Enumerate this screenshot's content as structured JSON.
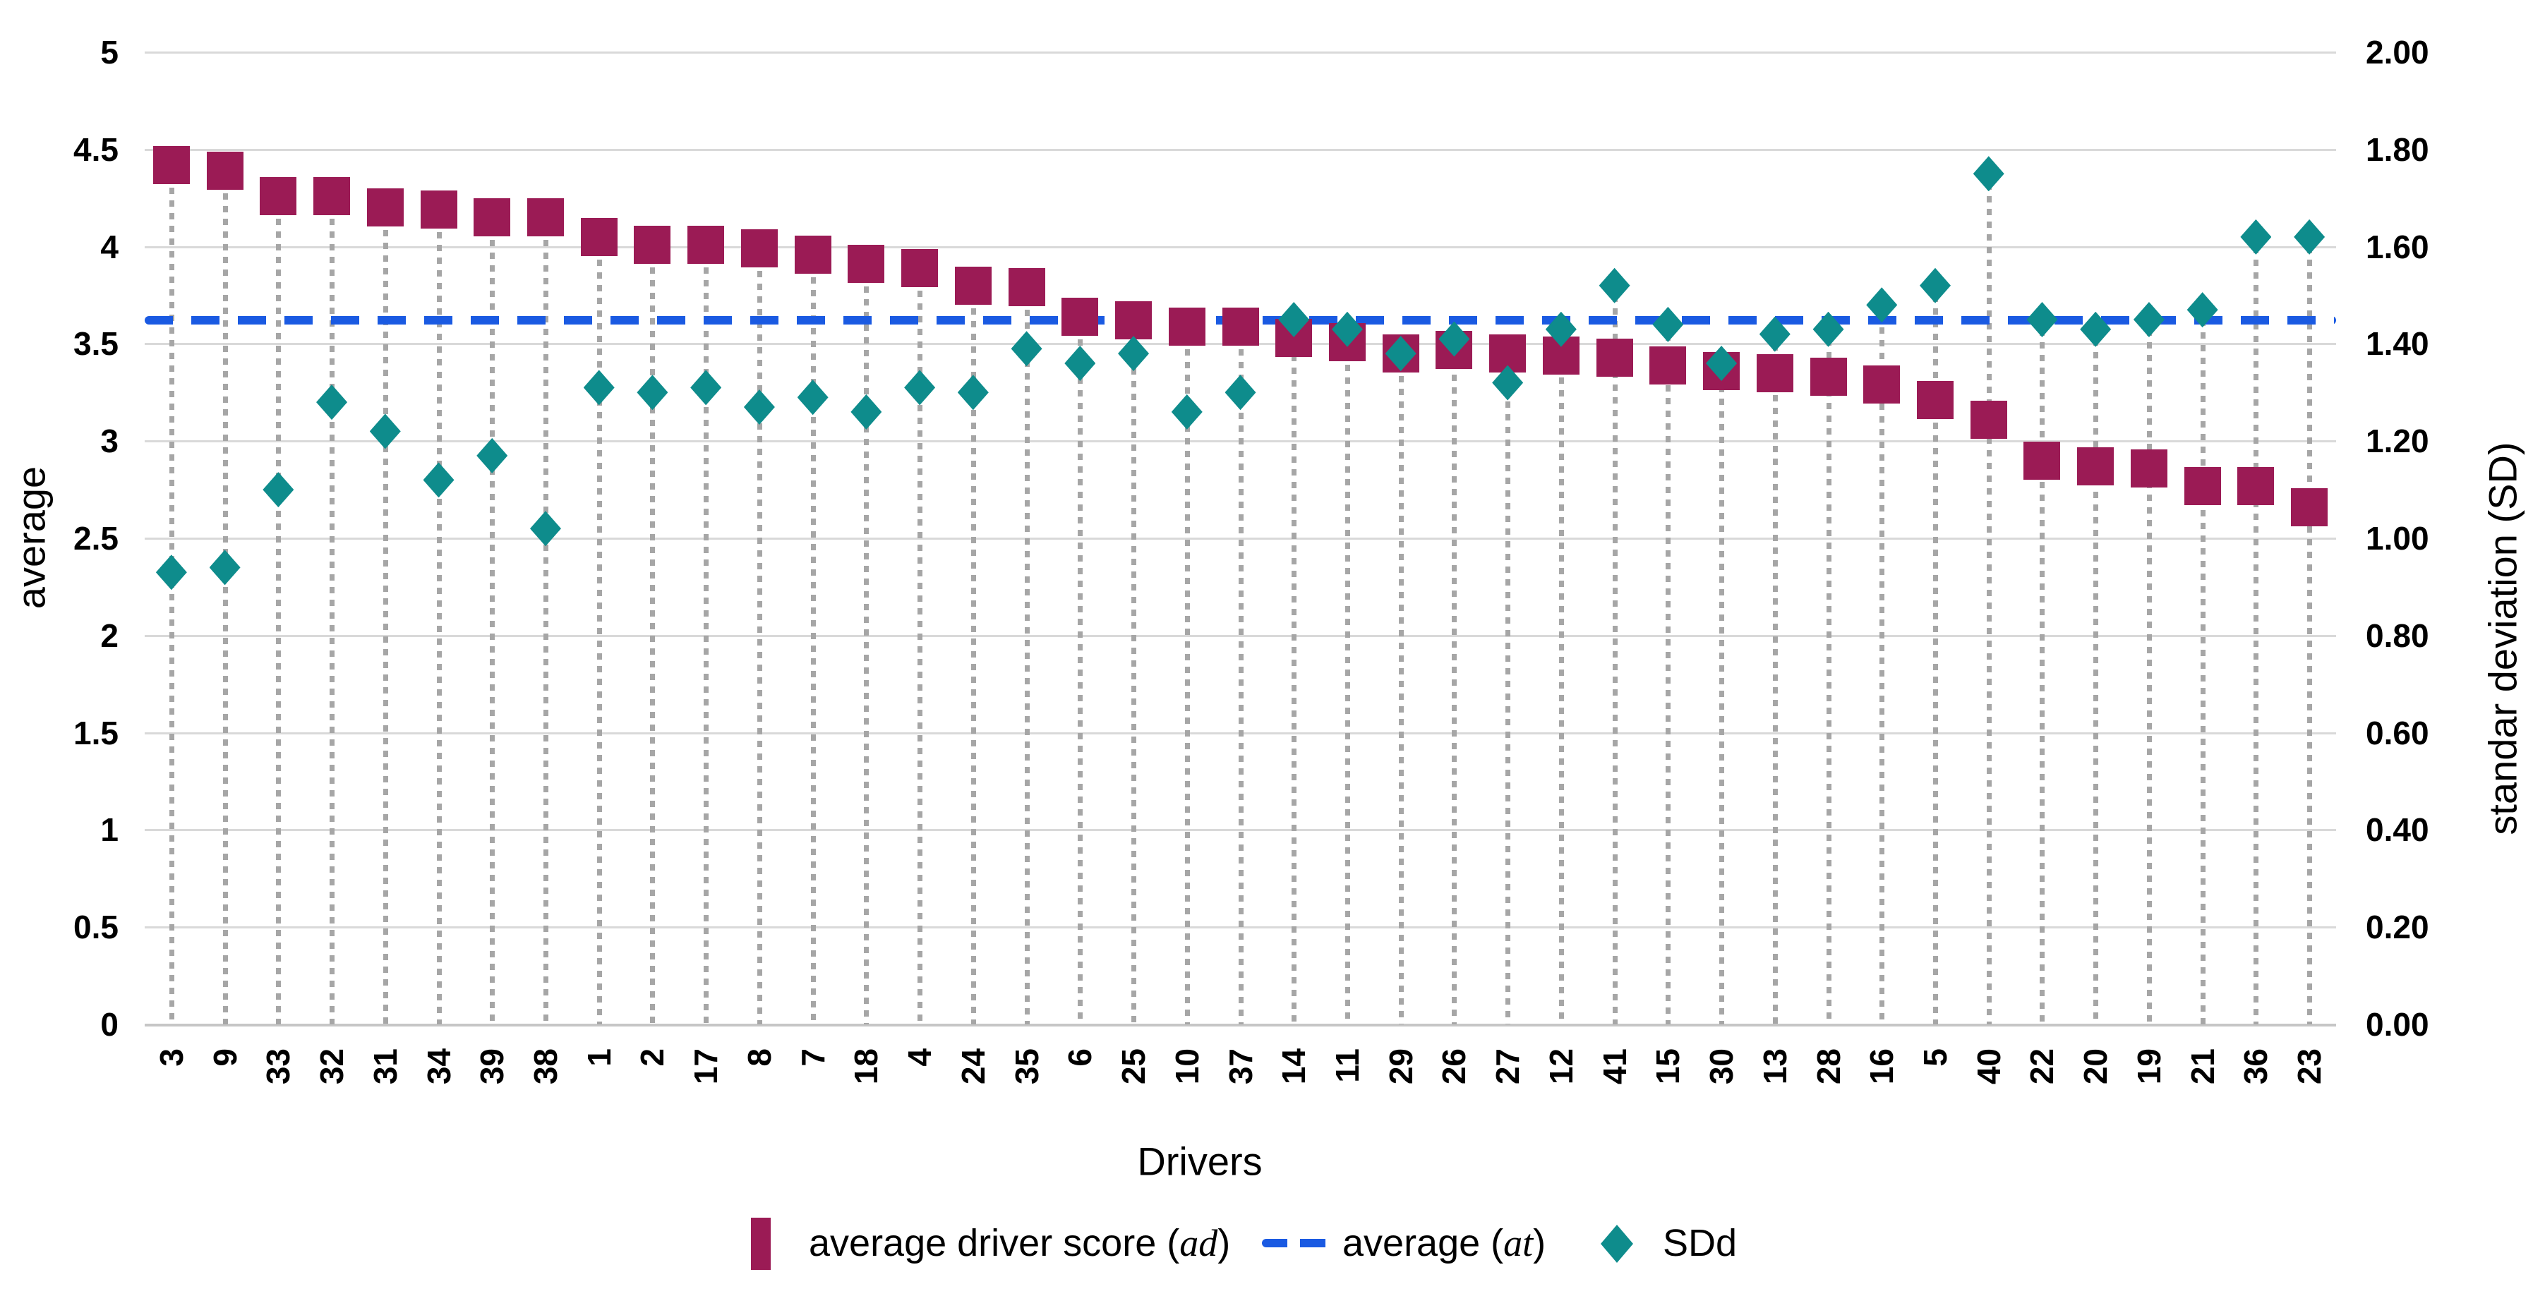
{
  "colors": {
    "square_series": "#9b1b55",
    "diamond_series": "#0e8c8c",
    "dashed_average": "#1a5ae2",
    "gridline": "#d9d9d9",
    "dropline": "#a6a6a6",
    "text": "#000000"
  },
  "legend": {
    "items": [
      {
        "marker": "square-swatch",
        "label_prefix": "average driver score (",
        "label_var": "ad",
        "label_suffix": ")"
      },
      {
        "marker": "dashed-swatch",
        "label_prefix": "average (",
        "label_var": "at",
        "label_suffix": ")"
      },
      {
        "marker": "diamond-swatch",
        "label_prefix": "SDd",
        "label_var": "",
        "label_suffix": ""
      }
    ]
  },
  "chart_data": {
    "type": "scatter",
    "title": "",
    "xlabel": "Drivers",
    "y_left": {
      "title": "average",
      "min": 0,
      "max": 5,
      "tick_step": 0.5,
      "ticks": [
        "5",
        "4.5",
        "4",
        "3.5",
        "3",
        "2.5",
        "2",
        "1.5",
        "1",
        "0.5",
        "0"
      ]
    },
    "y_right": {
      "title": "standar deviation (SD)",
      "min": 0,
      "max": 2,
      "tick_step": 0.2,
      "ticks": [
        "2.00",
        "1.80",
        "1.60",
        "1.40",
        "1.20",
        "1.00",
        "0.80",
        "0.60",
        "0.40",
        "0.20",
        "0.00"
      ]
    },
    "categories": [
      "3",
      "9",
      "33",
      "32",
      "31",
      "34",
      "39",
      "38",
      "1",
      "2",
      "17",
      "8",
      "7",
      "18",
      "4",
      "24",
      "35",
      "6",
      "25",
      "10",
      "37",
      "14",
      "11",
      "29",
      "26",
      "27",
      "12",
      "41",
      "15",
      "30",
      "13",
      "28",
      "16",
      "5",
      "40",
      "22",
      "20",
      "19",
      "21",
      "36",
      "23"
    ],
    "grid": true,
    "legend_position": "bottom",
    "series": [
      {
        "name": "average driver score (ad)",
        "marker": "square",
        "axis": "left",
        "values": [
          4.42,
          4.39,
          4.26,
          4.26,
          4.2,
          4.19,
          4.15,
          4.15,
          4.05,
          4.01,
          4.01,
          3.99,
          3.96,
          3.91,
          3.89,
          3.8,
          3.79,
          3.64,
          3.62,
          3.59,
          3.59,
          3.53,
          3.51,
          3.45,
          3.47,
          3.45,
          3.44,
          3.43,
          3.39,
          3.36,
          3.35,
          3.33,
          3.29,
          3.21,
          3.11,
          2.9,
          2.87,
          2.86,
          2.77,
          2.77,
          2.66
        ]
      },
      {
        "name": "average (at)",
        "marker": "dashed-line",
        "axis": "left",
        "value": 3.62
      },
      {
        "name": "SDd",
        "marker": "diamond",
        "axis": "right",
        "values": [
          0.93,
          0.94,
          1.1,
          1.28,
          1.22,
          1.12,
          1.17,
          1.02,
          1.31,
          1.3,
          1.31,
          1.27,
          1.29,
          1.26,
          1.31,
          1.3,
          1.39,
          1.36,
          1.38,
          1.26,
          1.3,
          1.45,
          1.43,
          1.38,
          1.41,
          1.32,
          1.43,
          1.52,
          1.44,
          1.36,
          1.42,
          1.43,
          1.48,
          1.52,
          1.75,
          1.45,
          1.43,
          1.45,
          1.47,
          1.62,
          1.62
        ]
      }
    ]
  }
}
